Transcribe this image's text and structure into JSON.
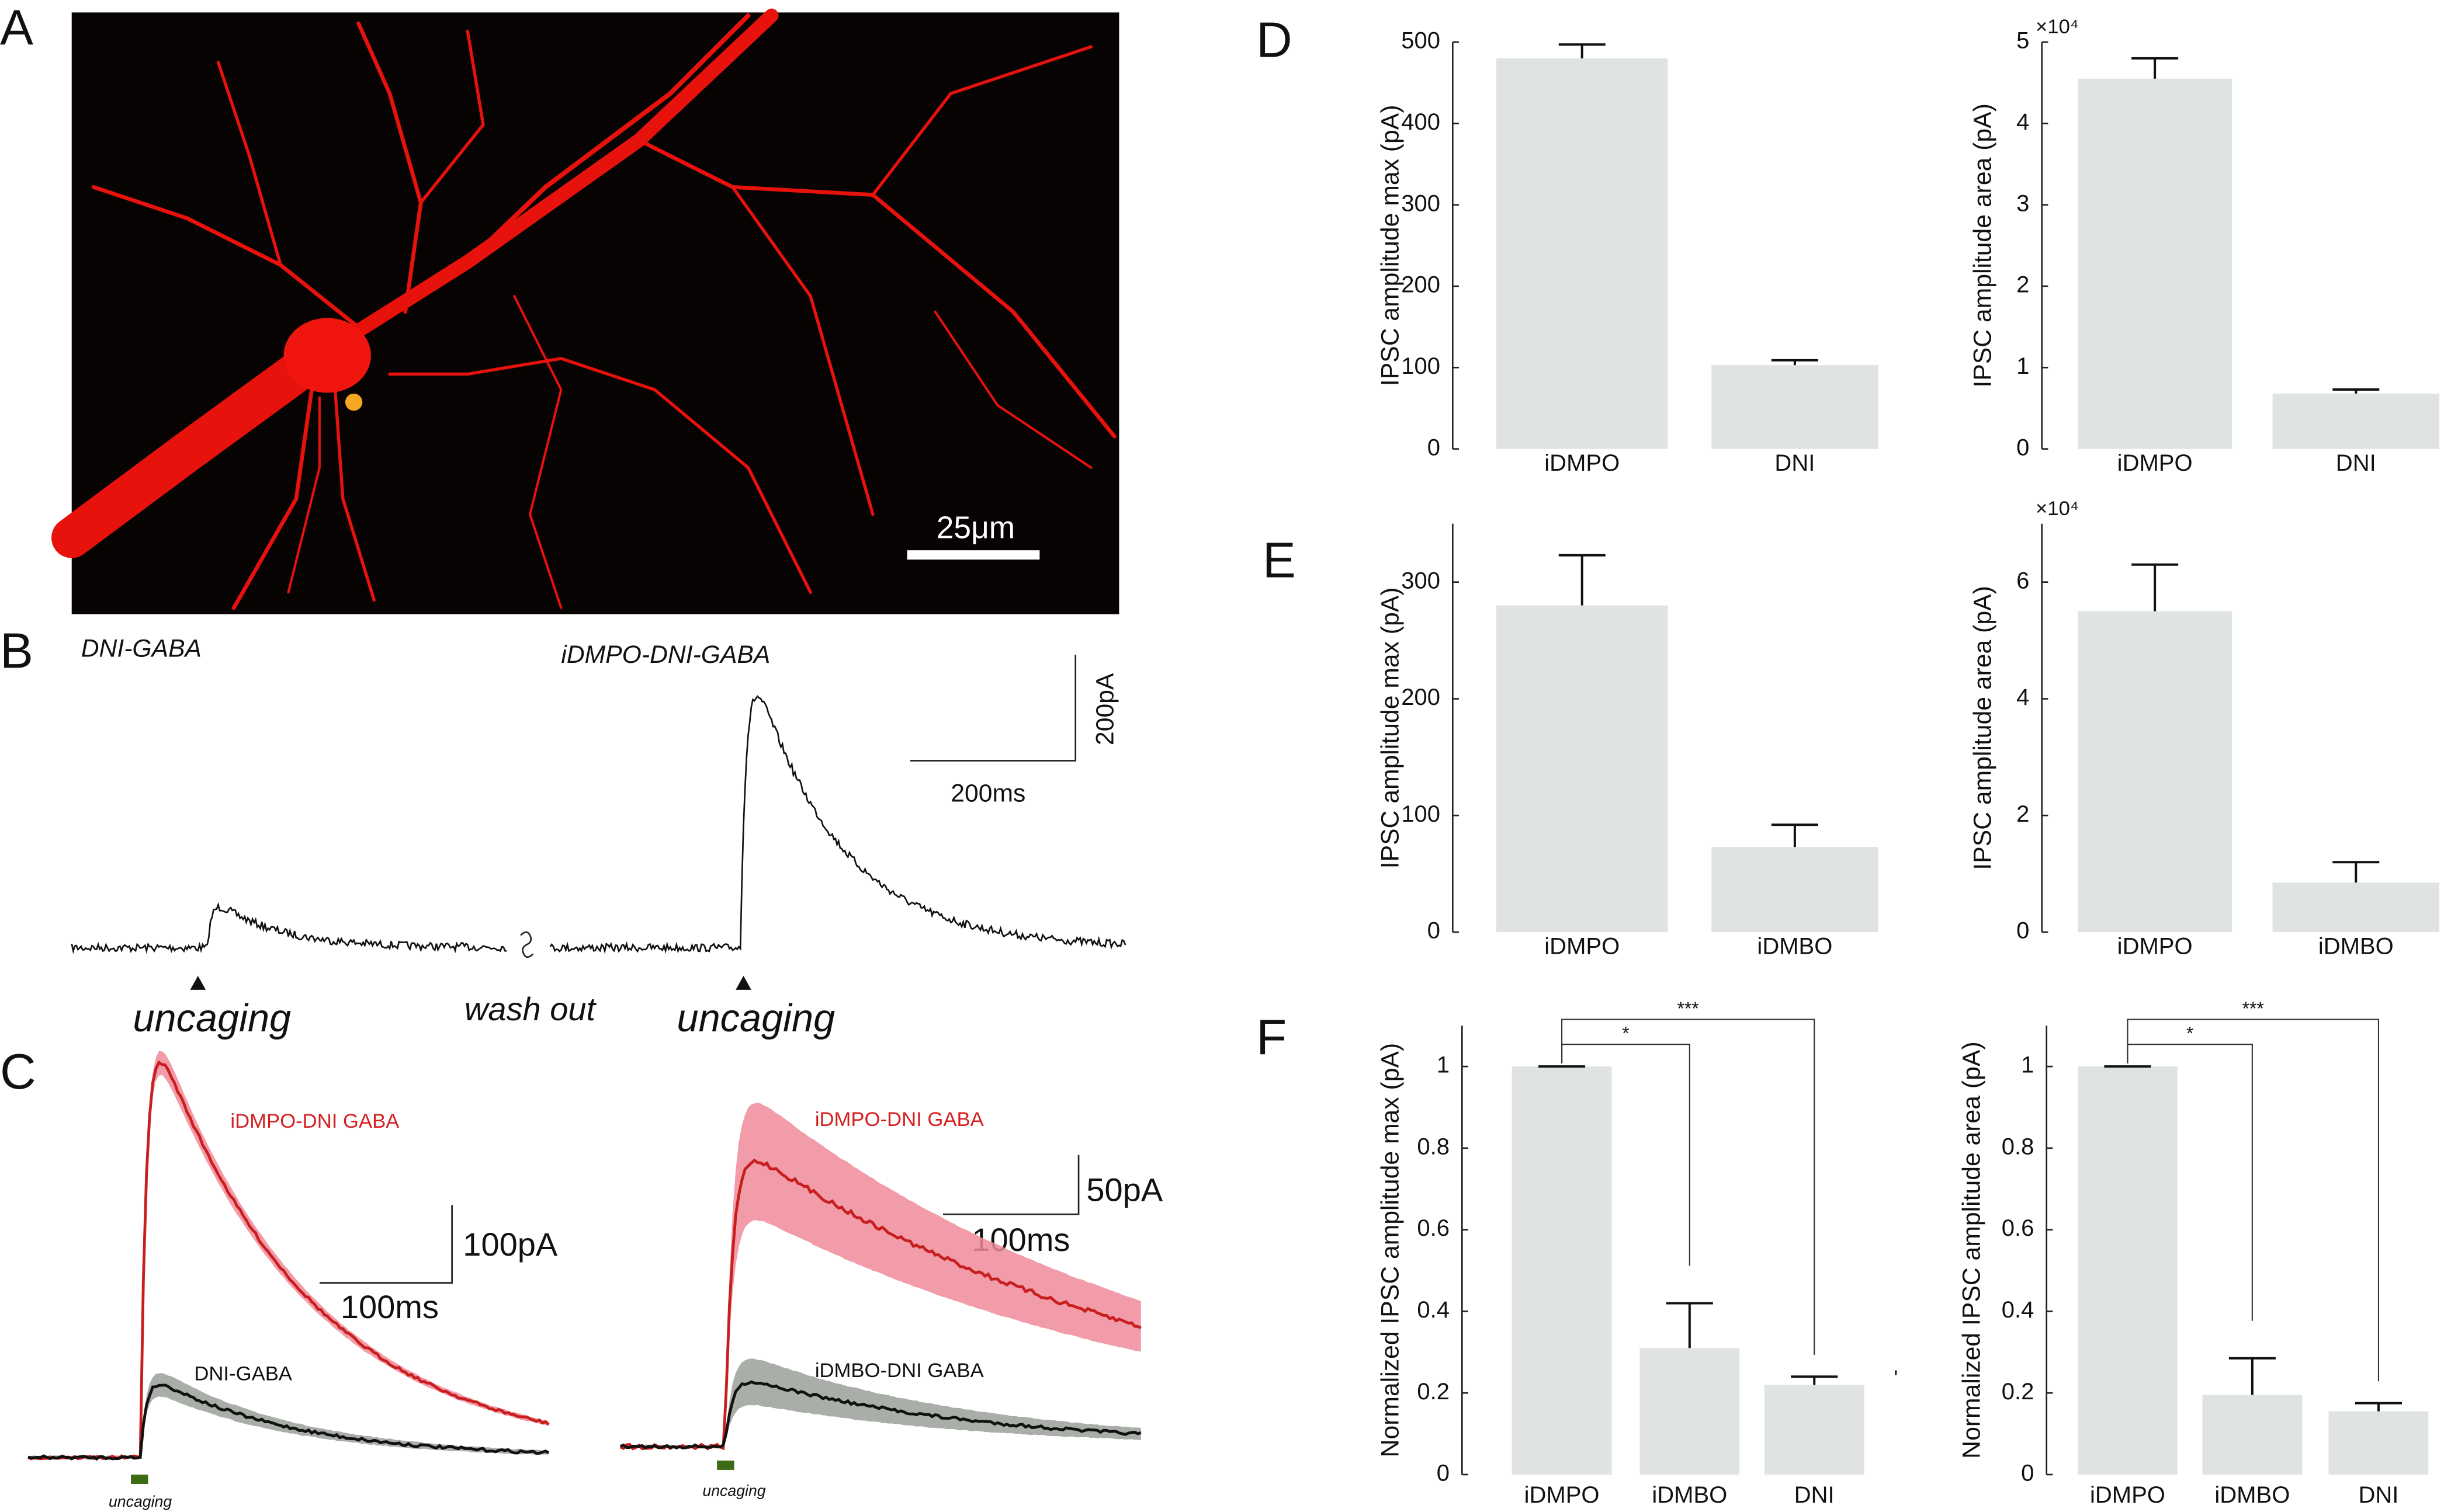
{
  "figure": {
    "panel_labels": [
      "A",
      "B",
      "C",
      "D",
      "E",
      "F"
    ],
    "scale_bar_a": "25μm",
    "b": {
      "left_title": "DNI-GABA",
      "right_title": "iDMPO-DNI-GABA",
      "scale_y": "200pA",
      "scale_x": "200ms",
      "stimulus_left": "uncaging",
      "washout": "wash out",
      "stimulus_right": "uncaging"
    },
    "c": {
      "left_red": "iDMPO-DNI GABA",
      "left_black": "DNI-GABA",
      "left_scale_y": "100pA",
      "left_scale_x": "100ms",
      "left_stimulus": "uncaging",
      "right_red": "iDMPO-DNI GABA",
      "right_black": "iDMBO-DNI GABA",
      "right_scale_y": "50pA",
      "right_scale_x": "100ms",
      "right_stimulus": "uncaging"
    }
  },
  "chart_data": [
    {
      "type": "bar",
      "ylabel": "IPSC amplitude max (pA)",
      "categories": [
        "iDMPO",
        "DNI"
      ],
      "values": [
        480,
        103
      ],
      "errors": [
        17,
        6
      ],
      "ylim": [
        0,
        500
      ],
      "yticks": [
        0,
        100,
        200,
        300,
        400,
        500
      ],
      "color": "#e0e3e3"
    },
    {
      "type": "bar",
      "ylabel": "IPSC amplitude area (pA)",
      "yscale_label": "×10⁴",
      "categories": [
        "iDMPO",
        "DNI"
      ],
      "values": [
        4.55,
        0.68
      ],
      "errors": [
        0.25,
        0.05
      ],
      "ylim": [
        0,
        5
      ],
      "yticks": [
        0,
        1,
        2,
        3,
        4,
        5
      ],
      "color": "#e0e3e3"
    },
    {
      "type": "bar",
      "ylabel": "IPSC amplitude max (pA)",
      "categories": [
        "iDMPO",
        "iDMBO"
      ],
      "values": [
        280,
        73
      ],
      "errors": [
        43,
        19
      ],
      "ylim": [
        0,
        350
      ],
      "yticks": [
        0,
        100,
        200,
        300
      ],
      "color": "#e0e3e3"
    },
    {
      "type": "bar",
      "ylabel": "IPSC amplitude area (pA)",
      "yscale_label": "×10⁴",
      "categories": [
        "iDMPO",
        "iDMBO"
      ],
      "values": [
        5.5,
        0.85
      ],
      "errors": [
        0.8,
        0.35
      ],
      "ylim": [
        0,
        7
      ],
      "yticks": [
        0,
        2,
        4,
        6
      ],
      "color": "#e0e3e3"
    },
    {
      "type": "bar",
      "ylabel": "Normalized IPSC amplitude max (pA)",
      "categories": [
        "iDMPO",
        "iDMBO",
        "DNI"
      ],
      "values": [
        1,
        0.31,
        0.22
      ],
      "errors": [
        0,
        0.11,
        0.02
      ],
      "ylim": [
        0,
        1.1
      ],
      "yticks": [
        0,
        0.2,
        0.4,
        0.6,
        0.8,
        1
      ],
      "color": "#e0e3e3",
      "significance": [
        "*",
        "***"
      ]
    },
    {
      "type": "bar",
      "ylabel": "Normalized IPSC amplitude area (pA)",
      "categories": [
        "iDMPO",
        "iDMBO",
        "DNI"
      ],
      "values": [
        1,
        0.195,
        0.155
      ],
      "errors": [
        0,
        0.09,
        0.02
      ],
      "ylim": [
        0,
        1.1
      ],
      "yticks": [
        0,
        0.2,
        0.4,
        0.6,
        0.8,
        1
      ],
      "color": "#e0e3e3",
      "significance": [
        "*",
        "***"
      ]
    }
  ]
}
